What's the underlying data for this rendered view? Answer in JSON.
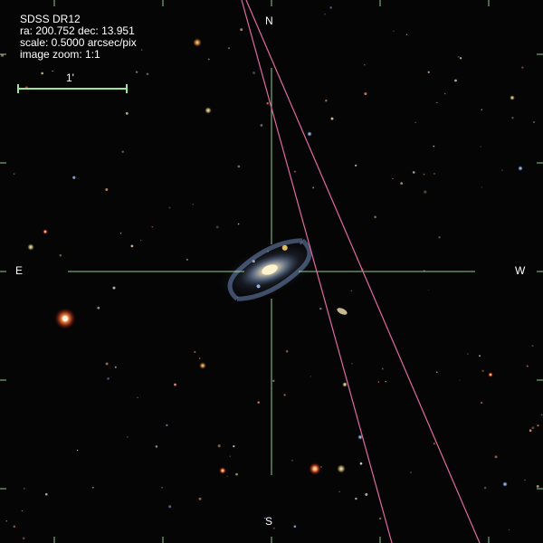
{
  "header": {
    "survey": "SDSS DR12",
    "coords": "ra: 200.752 dec: 13.951",
    "scale": "scale: 0.5000 arcsec/pix",
    "zoom": "image zoom: 1:1"
  },
  "scale_bar": {
    "label": "1'"
  },
  "directions": {
    "north": "N",
    "south": "S",
    "east": "E",
    "west": "W"
  },
  "colors": {
    "crosshair": "#a8f0a8",
    "scale_bar": "#9be59b",
    "track": "#e06aa0",
    "background": "#050505"
  }
}
